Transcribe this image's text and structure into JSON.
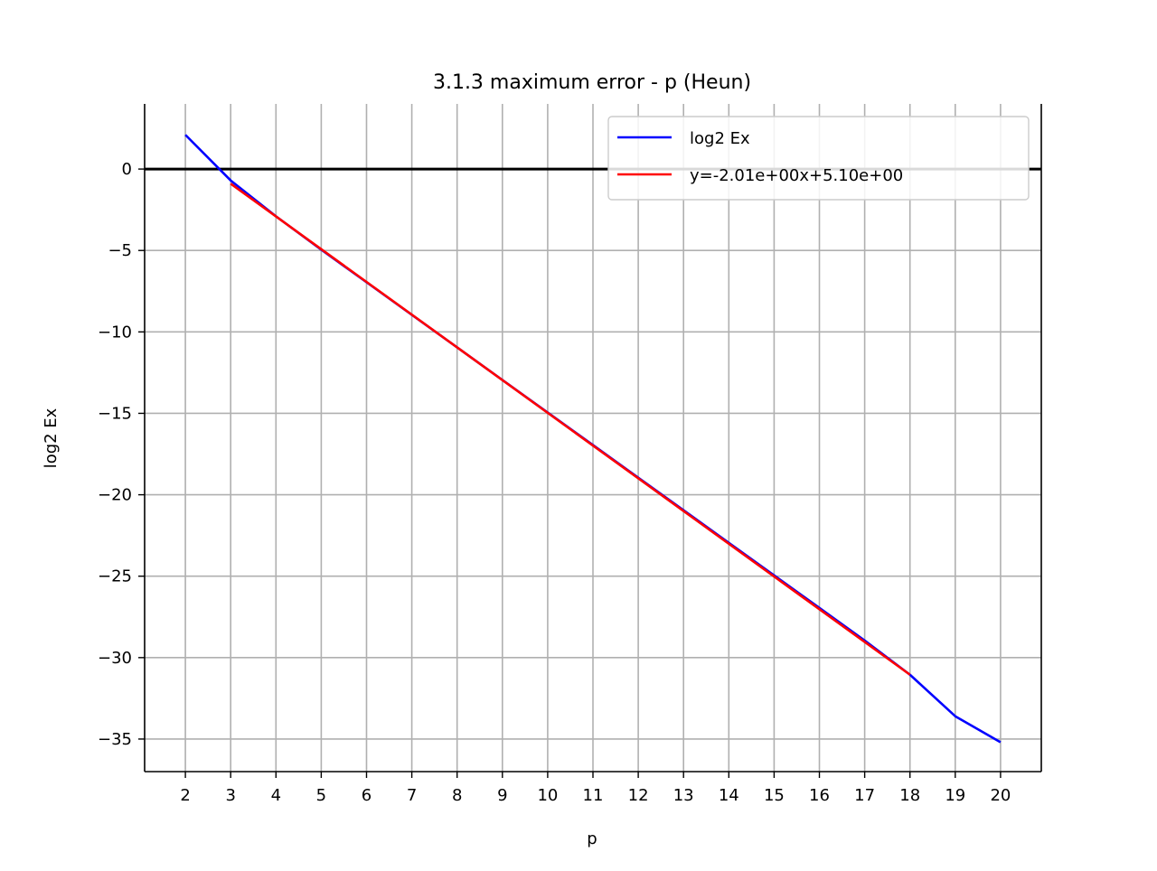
{
  "chart_data": {
    "type": "line",
    "title": "3.1.3 maximum error - p (Heun)",
    "xlabel": "p",
    "ylabel": "log2 Ex",
    "xlim": [
      1.1,
      20.9
    ],
    "ylim": [
      -37.0,
      4.0
    ],
    "x_ticks": [
      2,
      3,
      4,
      5,
      6,
      7,
      8,
      9,
      10,
      11,
      12,
      13,
      14,
      15,
      16,
      17,
      18,
      19,
      20
    ],
    "y_ticks": [
      0,
      -5,
      -10,
      -15,
      -20,
      -25,
      -30,
      -35
    ],
    "y_tick_labels": [
      "0",
      "−5",
      "−10",
      "−15",
      "−20",
      "−25",
      "−30",
      "−35"
    ],
    "grid": true,
    "reference_line": {
      "y": 0,
      "color": "#000000"
    },
    "legend_position": "top-right",
    "series": [
      {
        "name": "log2 Ex",
        "color": "#0000ff",
        "x": [
          2,
          3,
          4,
          5,
          6,
          7,
          8,
          9,
          10,
          11,
          12,
          13,
          14,
          15,
          16,
          17,
          18,
          19,
          20
        ],
        "y": [
          2.1,
          -0.7,
          -2.9,
          -4.95,
          -6.95,
          -8.95,
          -10.95,
          -12.95,
          -14.95,
          -16.95,
          -18.95,
          -20.95,
          -22.95,
          -24.95,
          -26.95,
          -28.95,
          -31.05,
          -33.6,
          -35.2
        ]
      },
      {
        "name": "y=-2.01e+00x+5.10e+00",
        "color": "#ff0000",
        "x": [
          3,
          18
        ],
        "y": [
          -0.9,
          -31.05
        ]
      }
    ]
  }
}
